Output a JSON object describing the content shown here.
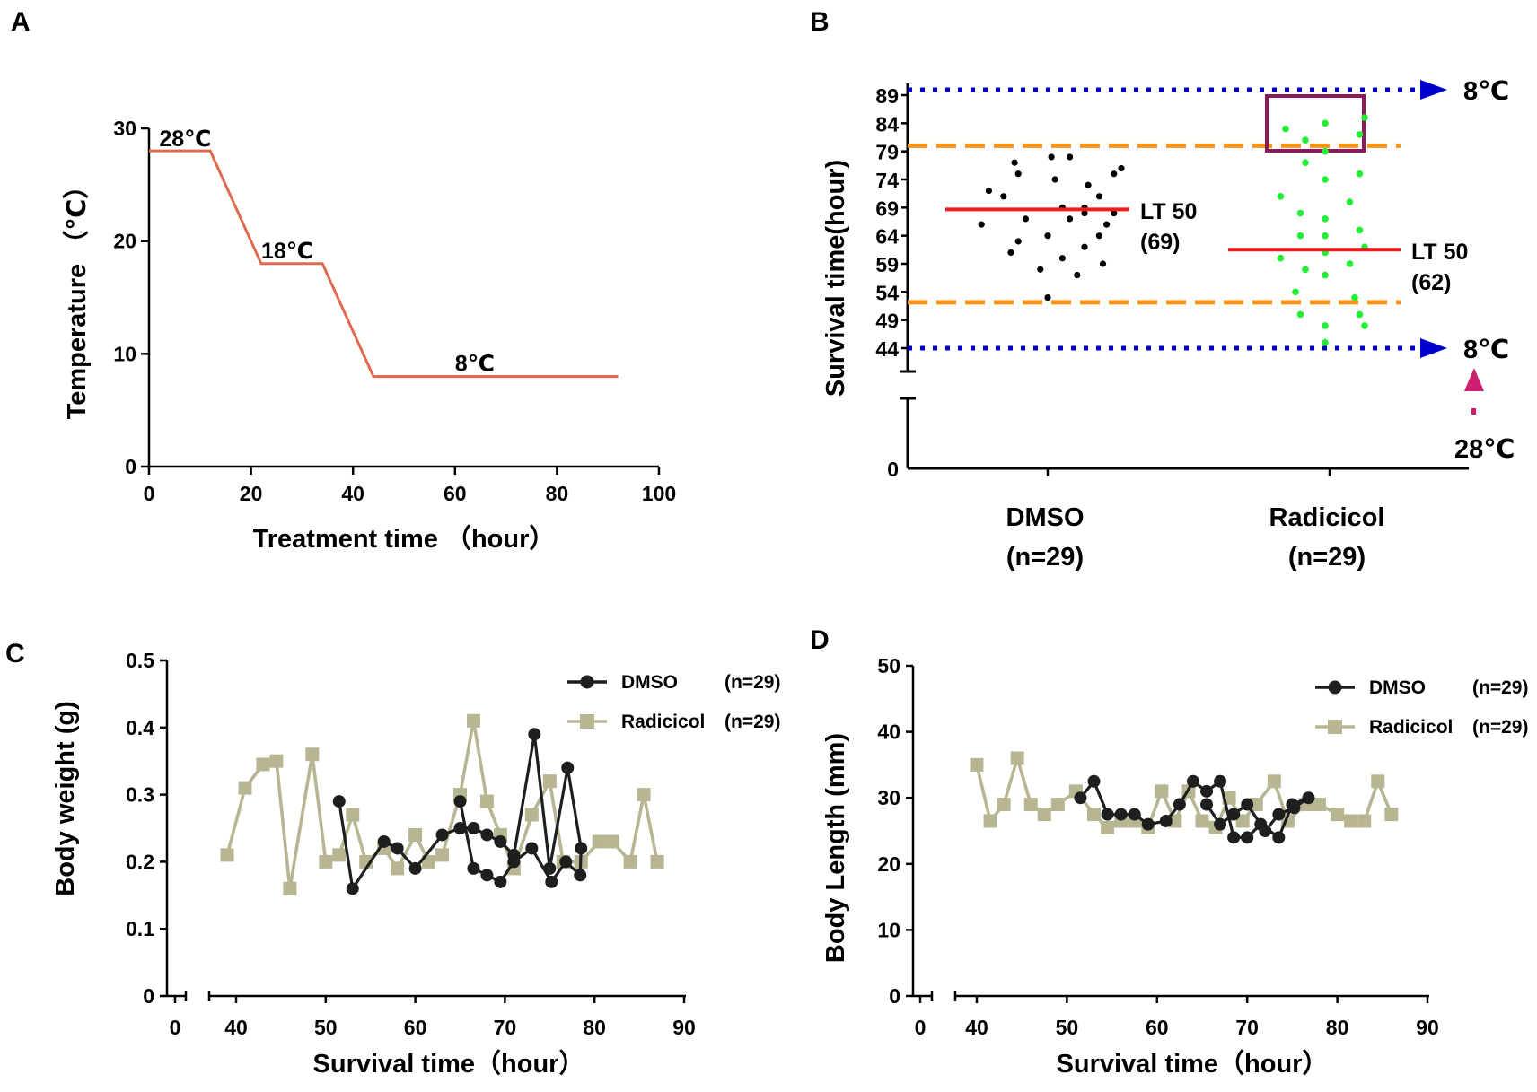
{
  "chart_data": [
    {
      "panel": "A",
      "type": "line",
      "title": "",
      "xlabel": "Treatment time （hour）",
      "ylabel": "Temperature （℃）",
      "xlim": [
        0,
        100
      ],
      "ylim": [
        0,
        30
      ],
      "xticks": [
        "0",
        "20",
        "40",
        "60",
        "80",
        "100"
      ],
      "yticks": [
        "0",
        "10",
        "20",
        "30"
      ],
      "color": "#e06a50",
      "x": [
        0,
        12,
        22,
        34,
        44,
        92
      ],
      "y": [
        28,
        28,
        18,
        18,
        8,
        8
      ],
      "annotations": [
        {
          "text": "28℃",
          "x": 2,
          "y": 28
        },
        {
          "text": "18℃",
          "x": 22,
          "y": 18
        },
        {
          "text": "8℃",
          "x": 60,
          "y": 8
        }
      ]
    },
    {
      "panel": "B",
      "type": "scatter",
      "ylabel": "Survival time(hour)",
      "yticks": [
        "44",
        "49",
        "54",
        "59",
        "64",
        "69",
        "74",
        "79",
        "84",
        "89"
      ],
      "ylim_low_tick": "0",
      "categories": [
        "DMSO",
        "Radicicol"
      ],
      "category_n": [
        "(n=29)",
        "(n=29)"
      ],
      "dmso_points": [
        [
          -0.45,
          77
        ],
        [
          0.05,
          78
        ],
        [
          0.3,
          78
        ],
        [
          1.0,
          76
        ],
        [
          -0.8,
          72
        ],
        [
          -0.4,
          75
        ],
        [
          0.1,
          74
        ],
        [
          0.55,
          73
        ],
        [
          0.9,
          75
        ],
        [
          0.7,
          71
        ],
        [
          -0.6,
          71
        ],
        [
          0.5,
          69
        ],
        [
          0.2,
          69
        ],
        [
          0.5,
          68
        ],
        [
          0.9,
          68
        ],
        [
          -0.3,
          67
        ],
        [
          -0.9,
          66
        ],
        [
          0.3,
          67
        ],
        [
          0.8,
          66
        ],
        [
          -0.4,
          63
        ],
        [
          0.0,
          64
        ],
        [
          0.5,
          62
        ],
        [
          0.7,
          64
        ],
        [
          -0.5,
          61
        ],
        [
          0.2,
          60
        ],
        [
          0.75,
          59
        ],
        [
          -0.1,
          58
        ],
        [
          0.4,
          57
        ],
        [
          0.0,
          53
        ]
      ],
      "radicicol_points": [
        [
          -0.4,
          83
        ],
        [
          0.0,
          84
        ],
        [
          0.4,
          85
        ],
        [
          -0.2,
          81
        ],
        [
          0.35,
          82
        ],
        [
          0.0,
          79
        ],
        [
          -0.2,
          77
        ],
        [
          0.0,
          74
        ],
        [
          0.35,
          75
        ],
        [
          -0.45,
          71
        ],
        [
          0.25,
          70
        ],
        [
          -0.25,
          68
        ],
        [
          0.0,
          67
        ],
        [
          0.35,
          65
        ],
        [
          -0.25,
          64
        ],
        [
          0.0,
          64
        ],
        [
          0.0,
          61
        ],
        [
          0.4,
          62
        ],
        [
          -0.45,
          60
        ],
        [
          0.25,
          59
        ],
        [
          -0.2,
          58
        ],
        [
          0.0,
          57
        ],
        [
          -0.3,
          54
        ],
        [
          0.3,
          53
        ],
        [
          -0.25,
          50
        ],
        [
          0.35,
          50
        ],
        [
          0.0,
          48
        ],
        [
          0.4,
          48
        ],
        [
          0.0,
          45
        ]
      ],
      "lt50": [
        {
          "category": "DMSO",
          "value": 69,
          "label": "LT 50",
          "sub": "(69)"
        },
        {
          "category": "Radicicol",
          "value": 62,
          "label": "LT 50",
          "sub": "(62)"
        }
      ],
      "dashed_lines": [
        80,
        52
      ],
      "dotted_lines": [
        {
          "value": 90,
          "label": "8℃"
        },
        {
          "value": 44,
          "label": "8℃"
        }
      ],
      "bottom_annotation": "28℃",
      "colors": {
        "dmso": "#000000",
        "radicicol": "#22ee33",
        "lt50": "#ee1c1c",
        "dashed": "#f7941d",
        "dotted": "#0000cc",
        "box": "#8b1a5a",
        "arrow": "#cc1f6f"
      }
    },
    {
      "panel": "C",
      "type": "line",
      "ylabel": "Body weight (g)",
      "xlabel": "Survival time（hour）",
      "ylim": [
        0,
        0.5
      ],
      "yticks": [
        "0",
        "0.1",
        "0.2",
        "0.3",
        "0.4",
        "0.5"
      ],
      "xticks": [
        "0",
        "40",
        "50",
        "60",
        "70",
        "80",
        "90"
      ],
      "xlim": [
        38,
        91
      ],
      "series": [
        {
          "name": "DMSO",
          "n": "(n=29)",
          "color": "#1e1e1e",
          "marker": "circle",
          "x": [
            51.5,
            53,
            56.5,
            58,
            60,
            63,
            65,
            66.5,
            68,
            69.5,
            71,
            73.3,
            75,
            77,
            78.5,
            78.4,
            76.8,
            75.2,
            73,
            71,
            69.5,
            68,
            66.5,
            65
          ],
          "y": [
            0.29,
            0.16,
            0.23,
            0.22,
            0.19,
            0.24,
            0.25,
            0.25,
            0.24,
            0.23,
            0.21,
            0.39,
            0.19,
            0.34,
            0.22,
            0.18,
            0.2,
            0.17,
            0.22,
            0.2,
            0.17,
            0.18,
            0.19,
            0.29
          ]
        },
        {
          "name": "Radicicol",
          "n": "(n=29)",
          "color": "#b8b692",
          "marker": "square",
          "x": [
            39,
            41,
            43,
            44.5,
            46,
            48.5,
            50,
            51.5,
            53,
            54.5,
            56.5,
            58,
            60,
            61.5,
            63,
            65,
            66.5,
            68,
            69.5,
            71,
            73,
            75,
            76.5,
            78.5,
            80.5,
            82,
            84,
            85.5,
            87
          ],
          "y": [
            0.21,
            0.31,
            0.345,
            0.35,
            0.16,
            0.36,
            0.2,
            0.21,
            0.27,
            0.2,
            0.22,
            0.19,
            0.24,
            0.2,
            0.21,
            0.3,
            0.41,
            0.29,
            0.24,
            0.19,
            0.27,
            0.32,
            0.2,
            0.2,
            0.23,
            0.23,
            0.2,
            0.3,
            0.2
          ]
        }
      ]
    },
    {
      "panel": "D",
      "type": "line",
      "ylabel": "Body Length (mm)",
      "xlabel": "Survival time（hour）",
      "ylim": [
        0,
        50
      ],
      "yticks": [
        "0",
        "10",
        "20",
        "30",
        "40",
        "50"
      ],
      "xticks": [
        "0",
        "40",
        "50",
        "60",
        "70",
        "80",
        "90"
      ],
      "xlim": [
        38,
        91
      ],
      "series": [
        {
          "name": "DMSO",
          "n": "(n=29)",
          "color": "#1e1e1e",
          "marker": "circle",
          "x": [
            51.5,
            53,
            54.5,
            56,
            57.5,
            59,
            61,
            62.5,
            64,
            65.5,
            67,
            68.5,
            70,
            71.5,
            73.5,
            75,
            76.8,
            75.2,
            73.5,
            72,
            70,
            68.5,
            67,
            65.5
          ],
          "y": [
            30,
            32.5,
            27.5,
            27.5,
            27.5,
            26,
            26.5,
            29,
            32.5,
            31,
            32.5,
            24,
            24,
            26,
            24,
            29,
            30,
            28.5,
            27.5,
            25,
            29,
            27.5,
            26,
            29
          ]
        },
        {
          "name": "Radicicol",
          "n": "(n=29)",
          "color": "#b8b692",
          "marker": "square",
          "x": [
            40,
            41.5,
            43,
            44.5,
            46,
            47.5,
            49,
            51,
            53,
            54.5,
            56,
            57.5,
            59,
            60.5,
            62,
            63.5,
            65,
            66.5,
            68,
            69.5,
            71,
            73,
            74.5,
            76.5,
            78,
            80,
            81.5,
            83,
            84.5,
            86
          ],
          "y": [
            35,
            26.5,
            29,
            36,
            29,
            27.5,
            29,
            31,
            27.5,
            25.5,
            26.5,
            26.5,
            25.5,
            31,
            26.5,
            31,
            26.5,
            25.5,
            30,
            26.5,
            29,
            32.5,
            26.5,
            29,
            29,
            27.5,
            26.5,
            26.5,
            32.5,
            27.5
          ]
        }
      ]
    }
  ]
}
